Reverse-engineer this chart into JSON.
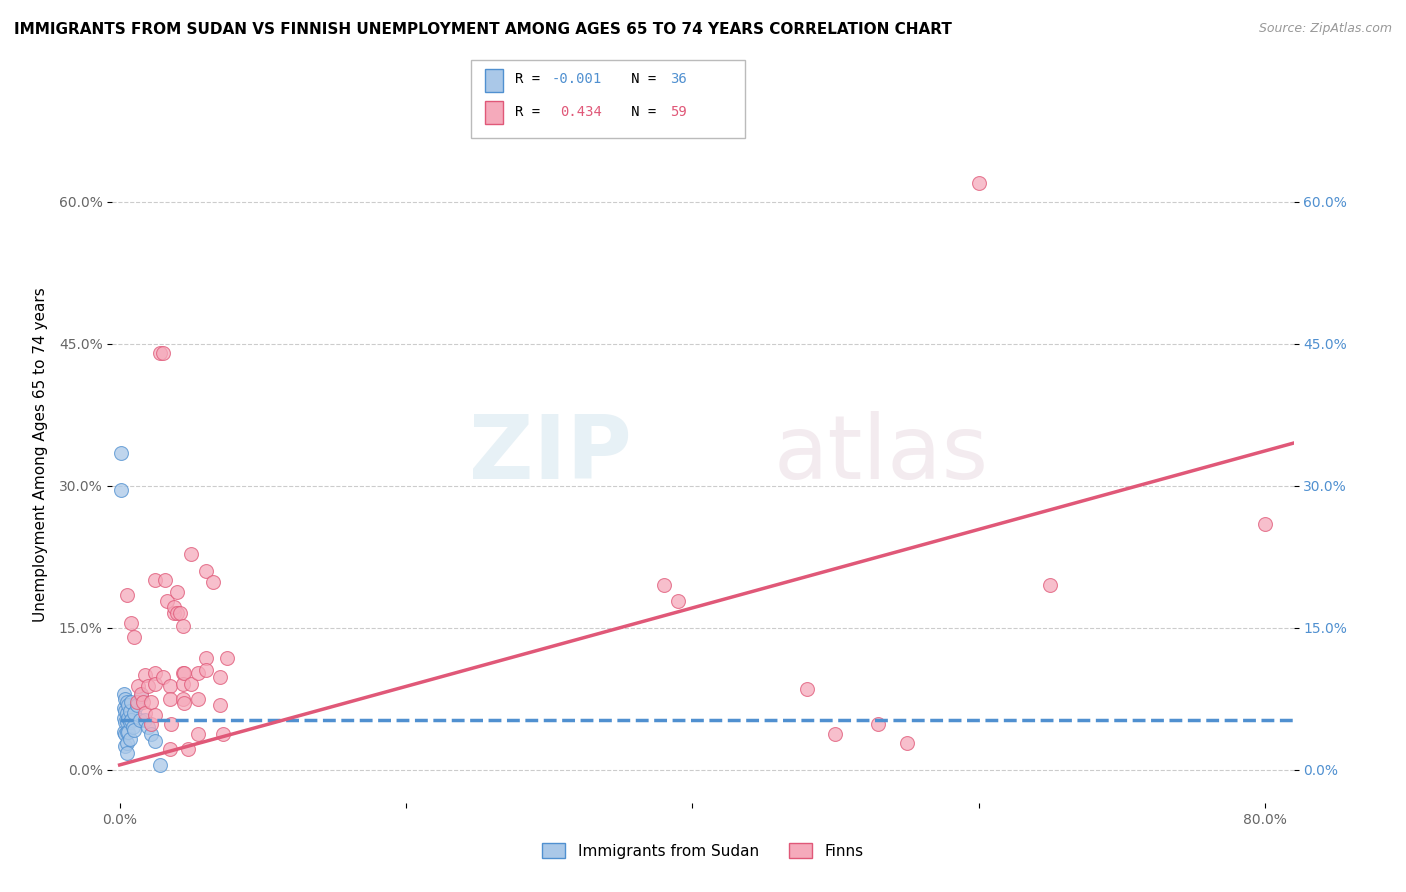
{
  "title": "IMMIGRANTS FROM SUDAN VS FINNISH UNEMPLOYMENT AMONG AGES 65 TO 74 YEARS CORRELATION CHART",
  "source": "Source: ZipAtlas.com",
  "ylabel": "Unemployment Among Ages 65 to 74 years",
  "legend_label1": "Immigrants from Sudan",
  "legend_label2": "Finns",
  "r1": "-0.001",
  "n1": "36",
  "r2": "0.434",
  "n2": "59",
  "xlim": [
    -0.005,
    0.82
  ],
  "ylim": [
    -0.035,
    0.7
  ],
  "yticks": [
    0.0,
    0.15,
    0.3,
    0.45,
    0.6
  ],
  "ytick_labels": [
    "0.0%",
    "15.0%",
    "30.0%",
    "45.0%",
    "60.0%"
  ],
  "xticks": [
    0.0,
    0.2,
    0.4,
    0.6,
    0.8
  ],
  "xtick_labels": [
    "0.0%",
    "",
    "",
    "",
    "80.0%"
  ],
  "color_blue": "#aac8e8",
  "color_pink": "#f5aabb",
  "color_blue_line": "#5090d0",
  "color_pink_line": "#e05878",
  "watermark_zip": "ZIP",
  "watermark_atlas": "atlas",
  "blue_dots": [
    [
      0.001,
      0.335
    ],
    [
      0.001,
      0.295
    ],
    [
      0.003,
      0.08
    ],
    [
      0.003,
      0.065
    ],
    [
      0.003,
      0.055
    ],
    [
      0.003,
      0.04
    ],
    [
      0.004,
      0.075
    ],
    [
      0.004,
      0.062
    ],
    [
      0.004,
      0.05
    ],
    [
      0.004,
      0.038
    ],
    [
      0.004,
      0.025
    ],
    [
      0.005,
      0.072
    ],
    [
      0.005,
      0.06
    ],
    [
      0.005,
      0.05
    ],
    [
      0.005,
      0.04
    ],
    [
      0.005,
      0.028
    ],
    [
      0.005,
      0.018
    ],
    [
      0.006,
      0.068
    ],
    [
      0.006,
      0.055
    ],
    [
      0.006,
      0.04
    ],
    [
      0.007,
      0.062
    ],
    [
      0.007,
      0.05
    ],
    [
      0.007,
      0.032
    ],
    [
      0.008,
      0.072
    ],
    [
      0.008,
      0.052
    ],
    [
      0.009,
      0.045
    ],
    [
      0.01,
      0.06
    ],
    [
      0.01,
      0.042
    ],
    [
      0.012,
      0.068
    ],
    [
      0.014,
      0.052
    ],
    [
      0.015,
      0.078
    ],
    [
      0.018,
      0.052
    ],
    [
      0.02,
      0.045
    ],
    [
      0.022,
      0.038
    ],
    [
      0.025,
      0.03
    ],
    [
      0.028,
      0.005
    ]
  ],
  "pink_dots": [
    [
      0.005,
      0.185
    ],
    [
      0.008,
      0.155
    ],
    [
      0.01,
      0.14
    ],
    [
      0.012,
      0.072
    ],
    [
      0.013,
      0.088
    ],
    [
      0.015,
      0.08
    ],
    [
      0.016,
      0.072
    ],
    [
      0.018,
      0.1
    ],
    [
      0.018,
      0.06
    ],
    [
      0.02,
      0.088
    ],
    [
      0.022,
      0.072
    ],
    [
      0.022,
      0.048
    ],
    [
      0.025,
      0.2
    ],
    [
      0.025,
      0.102
    ],
    [
      0.025,
      0.09
    ],
    [
      0.025,
      0.058
    ],
    [
      0.028,
      0.44
    ],
    [
      0.03,
      0.44
    ],
    [
      0.03,
      0.098
    ],
    [
      0.032,
      0.2
    ],
    [
      0.033,
      0.178
    ],
    [
      0.035,
      0.088
    ],
    [
      0.035,
      0.075
    ],
    [
      0.035,
      0.022
    ],
    [
      0.036,
      0.048
    ],
    [
      0.038,
      0.165
    ],
    [
      0.038,
      0.172
    ],
    [
      0.04,
      0.165
    ],
    [
      0.04,
      0.188
    ],
    [
      0.042,
      0.165
    ],
    [
      0.044,
      0.152
    ],
    [
      0.044,
      0.102
    ],
    [
      0.044,
      0.09
    ],
    [
      0.044,
      0.075
    ],
    [
      0.045,
      0.102
    ],
    [
      0.045,
      0.07
    ],
    [
      0.048,
      0.022
    ],
    [
      0.05,
      0.09
    ],
    [
      0.05,
      0.228
    ],
    [
      0.055,
      0.102
    ],
    [
      0.055,
      0.075
    ],
    [
      0.055,
      0.038
    ],
    [
      0.06,
      0.118
    ],
    [
      0.06,
      0.105
    ],
    [
      0.06,
      0.21
    ],
    [
      0.065,
      0.198
    ],
    [
      0.07,
      0.098
    ],
    [
      0.07,
      0.068
    ],
    [
      0.072,
      0.038
    ],
    [
      0.075,
      0.118
    ],
    [
      0.38,
      0.195
    ],
    [
      0.39,
      0.178
    ],
    [
      0.48,
      0.085
    ],
    [
      0.5,
      0.038
    ],
    [
      0.53,
      0.048
    ],
    [
      0.55,
      0.028
    ],
    [
      0.6,
      0.62
    ],
    [
      0.65,
      0.195
    ],
    [
      0.8,
      0.26
    ]
  ],
  "blue_trend_x": [
    0.0,
    0.82
  ],
  "blue_trend_y": [
    0.052,
    0.052
  ],
  "pink_trend_x": [
    0.0,
    0.82
  ],
  "pink_trend_y": [
    0.005,
    0.345
  ]
}
